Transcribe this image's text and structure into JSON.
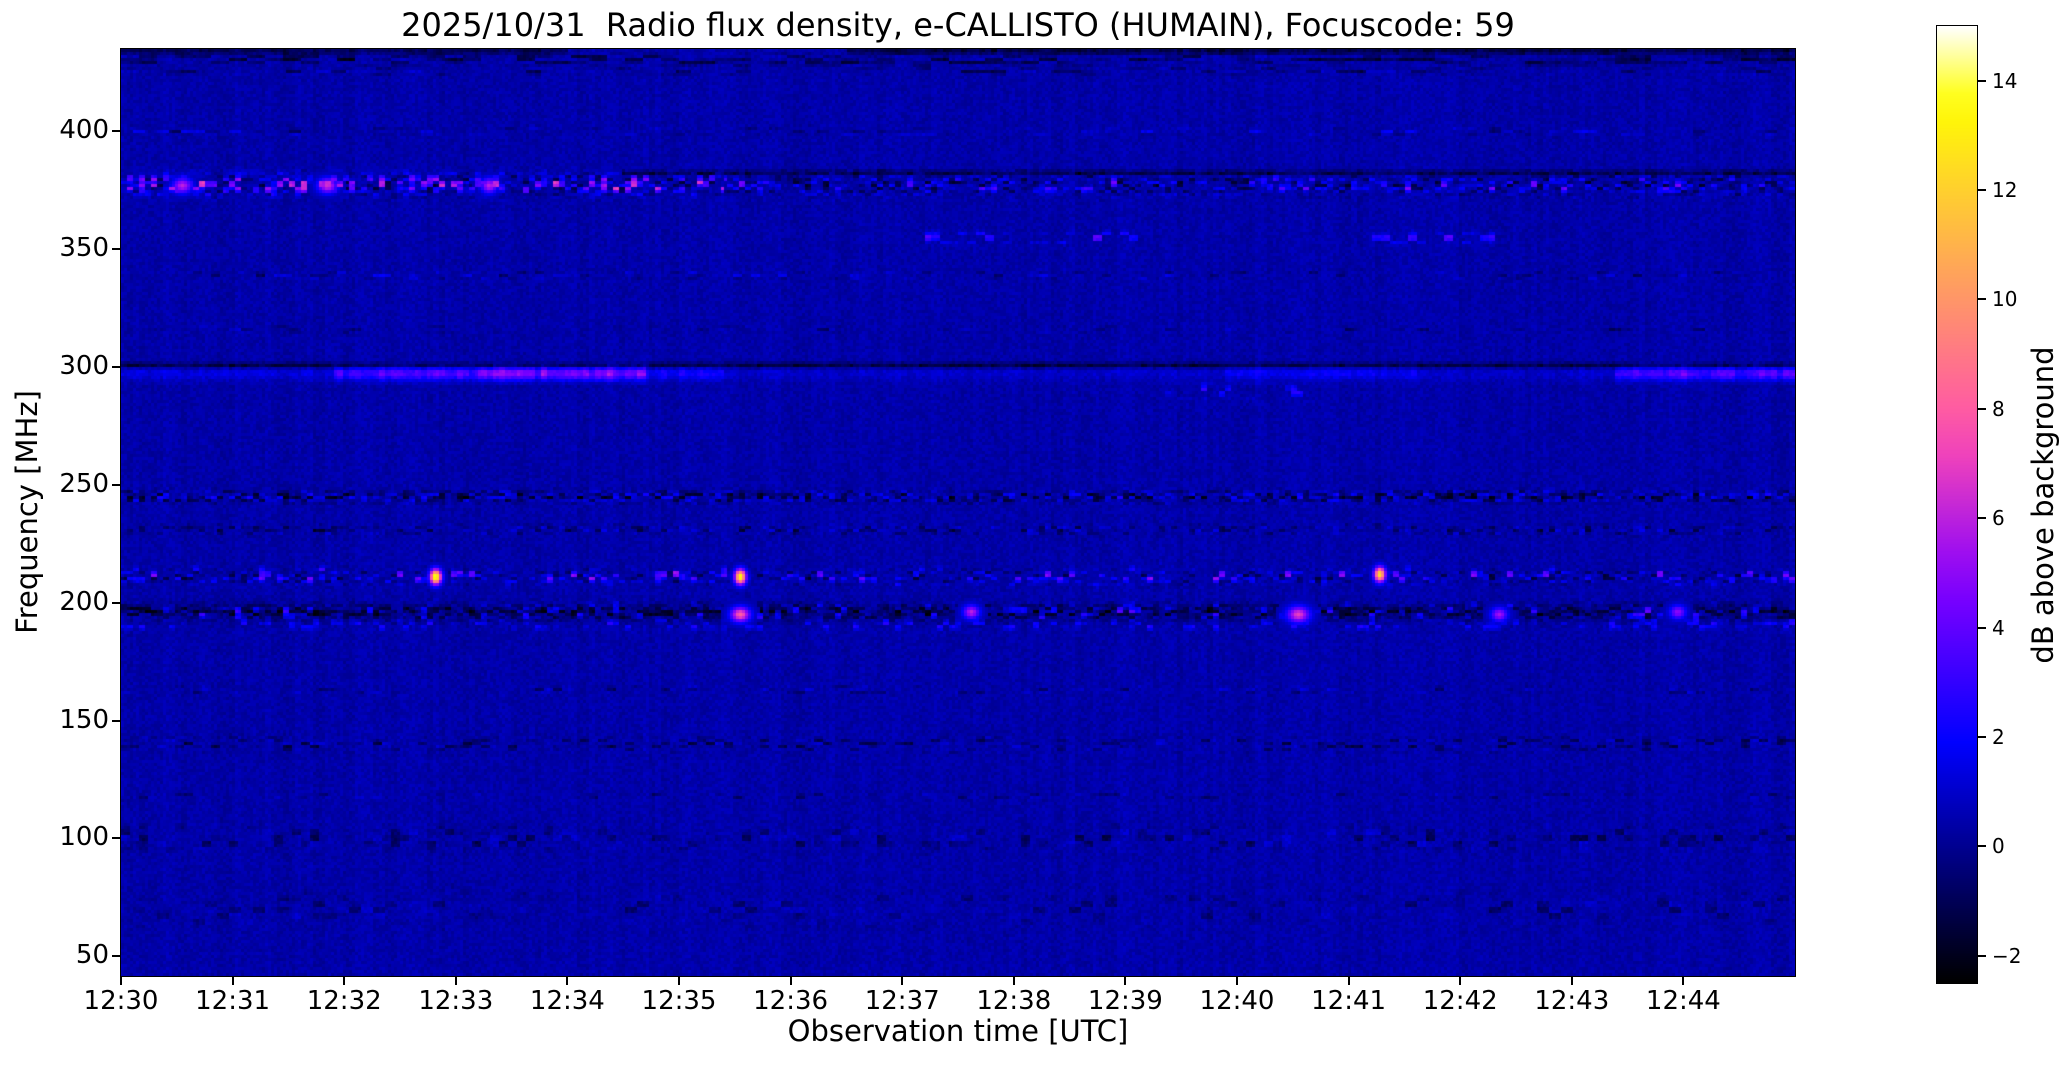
{
  "chart_data": {
    "type": "heatmap",
    "subtype": "radio-spectrogram",
    "title": "2025/10/31  Radio flux density, e-CALLISTO (HUMAIN), Focuscode: 59",
    "xlabel": "Observation time [UTC]",
    "ylabel": "Frequency [MHz]",
    "x_ticks": [
      "12:30",
      "12:31",
      "12:32",
      "12:33",
      "12:34",
      "12:35",
      "12:36",
      "12:37",
      "12:38",
      "12:39",
      "12:40",
      "12:41",
      "12:42",
      "12:43",
      "12:44"
    ],
    "x_span_minutes": 15,
    "x_start": "12:30",
    "x_end": "12:45",
    "f_min": 41.6,
    "f_max": 435,
    "y_ticks": [
      400,
      350,
      300,
      250,
      200,
      150,
      100,
      50
    ],
    "colorbar": {
      "label": "dB above background",
      "range": [
        -2.5,
        15
      ],
      "ticks": [
        {
          "v": 14,
          "label": "14"
        },
        {
          "v": 12,
          "label": "12"
        },
        {
          "v": 10,
          "label": "10"
        },
        {
          "v": 8,
          "label": "8"
        },
        {
          "v": 6,
          "label": "6"
        },
        {
          "v": 4,
          "label": "4"
        },
        {
          "v": 2,
          "label": "2"
        },
        {
          "v": 0,
          "label": "0"
        },
        {
          "v": -2,
          "label": "−2"
        }
      ],
      "colormap": "gnuplot2",
      "stops": [
        [
          0,
          "#000000"
        ],
        [
          0.05,
          "#000033"
        ],
        [
          0.1,
          "#000066"
        ],
        [
          0.15,
          "#000099"
        ],
        [
          0.2,
          "#0000cc"
        ],
        [
          0.25,
          "#0000ff"
        ],
        [
          0.3,
          "#2800ff"
        ],
        [
          0.35,
          "#5000ff"
        ],
        [
          0.4,
          "#7800ff"
        ],
        [
          0.45,
          "#9f0ff0"
        ],
        [
          0.5,
          "#c729d6"
        ],
        [
          0.55,
          "#ef42bd"
        ],
        [
          0.6,
          "#ff5ca3"
        ],
        [
          0.65,
          "#ff758a"
        ],
        [
          0.7,
          "#ff8f70"
        ],
        [
          0.75,
          "#ffa857"
        ],
        [
          0.8,
          "#ffc23d"
        ],
        [
          0.85,
          "#ffdb24"
        ],
        [
          0.9,
          "#fff50a"
        ],
        [
          0.93,
          "#ffff20"
        ],
        [
          0.96,
          "#ffff80"
        ],
        [
          1,
          "#ffffff"
        ]
      ]
    },
    "noise": {
      "bg_db": 0.4,
      "pixel_noise_db": 0.7,
      "column_noise_db": 0.3
    },
    "bands": [
      {
        "f": 430.5,
        "hw": 1.6,
        "t0": 0,
        "t1": 15,
        "fill": 0.6,
        "dbmin": -2.0,
        "dbmax": 0.8,
        "cw": 6,
        "ch": 1
      },
      {
        "f": 425.5,
        "hw": 1.0,
        "t0": 0,
        "t1": 15,
        "fill": 0.35,
        "dbmin": -1.2,
        "dbmax": 1.2,
        "cw": 5,
        "ch": 1
      },
      {
        "f": 400,
        "hw": 1.2,
        "t0": 0,
        "t1": 15,
        "fill": 0.3,
        "dbmin": -0.8,
        "dbmax": 1.6,
        "cw": 4,
        "ch": 1
      },
      {
        "f": 377.5,
        "hw": 3.2,
        "t0": 0,
        "t1": 15,
        "fill": 0.55,
        "dbmin": -1.8,
        "dbmax": 2.4,
        "cw": 2,
        "ch": 1
      },
      {
        "f": 377.5,
        "hw": 2.6,
        "t0": 0,
        "t1": 5.4,
        "fill": 0.3,
        "dbmin": 2.0,
        "dbmax": 6.8,
        "cw": 2,
        "ch": 2
      },
      {
        "f": 377.5,
        "hw": 2.2,
        "t0": 5.4,
        "t1": 15,
        "fill": 0.07,
        "dbmin": 2.0,
        "dbmax": 4.5,
        "cw": 2,
        "ch": 2
      },
      {
        "f": 355,
        "hw": 1.4,
        "t0": 7.2,
        "t1": 9.2,
        "fill": 0.32,
        "dbmin": 1.5,
        "dbmax": 4.2,
        "cw": 3,
        "ch": 2
      },
      {
        "f": 355,
        "hw": 1.4,
        "t0": 11.2,
        "t1": 12.3,
        "fill": 0.3,
        "dbmin": 1.5,
        "dbmax": 4.2,
        "cw": 3,
        "ch": 2
      },
      {
        "f": 339,
        "hw": 1.2,
        "t0": 0,
        "t1": 15,
        "fill": 0.25,
        "dbmin": -1.0,
        "dbmax": 1.6,
        "cw": 3,
        "ch": 1
      },
      {
        "f": 316,
        "hw": 0.9,
        "t0": 0,
        "t1": 15,
        "fill": 0.2,
        "dbmin": -0.9,
        "dbmax": 1.2,
        "cw": 4,
        "ch": 1
      },
      {
        "f": 290,
        "hw": 1.8,
        "t0": 9.3,
        "t1": 10.6,
        "fill": 0.18,
        "dbmin": 1.2,
        "dbmax": 2.8,
        "cw": 2,
        "ch": 2
      },
      {
        "f": 245,
        "hw": 1.7,
        "t0": 0,
        "t1": 15,
        "fill": 0.8,
        "dbmin": -2.4,
        "dbmax": 2.2,
        "cw": 2,
        "ch": 1
      },
      {
        "f": 231,
        "hw": 1.4,
        "t0": 0,
        "t1": 15,
        "fill": 0.45,
        "dbmin": -1.6,
        "dbmax": 1.5,
        "cw": 2,
        "ch": 1
      },
      {
        "f": 211,
        "hw": 2.0,
        "t0": 0,
        "t1": 15,
        "fill": 0.5,
        "dbmin": -1.6,
        "dbmax": 2.6,
        "cw": 2,
        "ch": 1
      },
      {
        "f": 211.5,
        "hw": 2.2,
        "t0": 0,
        "t1": 15,
        "fill": 0.07,
        "dbmin": 2.2,
        "dbmax": 5.0,
        "cw": 2,
        "ch": 2
      },
      {
        "f": 196,
        "hw": 2.4,
        "t0": 0,
        "t1": 15,
        "fill": 0.88,
        "dbmin": -2.4,
        "dbmax": 0.4,
        "cw": 2,
        "ch": 1
      },
      {
        "f": 196,
        "hw": 2.4,
        "t0": 0,
        "t1": 15,
        "fill": 0.16,
        "dbmin": 1.2,
        "dbmax": 4.0,
        "cw": 2,
        "ch": 2
      },
      {
        "f": 190.5,
        "hw": 1.4,
        "t0": 0,
        "t1": 15,
        "fill": 0.28,
        "dbmin": 0.5,
        "dbmax": 2.8,
        "cw": 2,
        "ch": 2
      },
      {
        "f": 163,
        "hw": 1.2,
        "t0": 0,
        "t1": 15,
        "fill": 0.25,
        "dbmin": -1.0,
        "dbmax": 1.5,
        "cw": 3,
        "ch": 1
      },
      {
        "f": 140,
        "hw": 2.0,
        "t0": 0,
        "t1": 15,
        "fill": 0.4,
        "dbmin": -1.6,
        "dbmax": 1.2,
        "cw": 3,
        "ch": 1
      },
      {
        "f": 118,
        "hw": 1.0,
        "t0": 0,
        "t1": 15,
        "fill": 0.2,
        "dbmin": -1.0,
        "dbmax": 1.0,
        "cw": 3,
        "ch": 1
      },
      {
        "f": 100,
        "hw": 3.5,
        "t0": 0,
        "t1": 15,
        "fill": 0.35,
        "dbmin": -1.3,
        "dbmax": 1.2,
        "cw": 3,
        "ch": 2
      },
      {
        "f": 70,
        "hw": 5.0,
        "t0": 0,
        "t1": 15,
        "fill": 0.3,
        "dbmin": -0.8,
        "dbmax": 0.9,
        "cw": 4,
        "ch": 2
      }
    ],
    "streaks": [
      {
        "f": 297.3,
        "hw": 2.0,
        "segments": [
          [
            0,
            1.9,
            1.0
          ],
          [
            1.9,
            3.2,
            3.0
          ],
          [
            3.2,
            4.7,
            4.0
          ],
          [
            4.7,
            5.4,
            1.8
          ],
          [
            5.4,
            9.9,
            0.6
          ],
          [
            9.9,
            11.6,
            1.3
          ],
          [
            11.6,
            13.4,
            0.6
          ],
          [
            13.4,
            15,
            3.2
          ]
        ]
      },
      {
        "f": 300.8,
        "hw": 0.8,
        "segments": [
          [
            0,
            15,
            -1.8
          ]
        ]
      },
      {
        "f": 382.5,
        "hw": 0.7,
        "segments": [
          [
            4.5,
            15,
            -1.6
          ]
        ]
      },
      {
        "f": 434,
        "hw": 0.8,
        "segments": [
          [
            0,
            4,
            -1.5
          ],
          [
            6.5,
            15,
            -1.8
          ]
        ]
      }
    ],
    "events": [
      {
        "t": 2.82,
        "f": 211,
        "db": 14.5,
        "sw": 0.035,
        "sh": 2.2
      },
      {
        "t": 5.55,
        "f": 211,
        "db": 13.5,
        "sw": 0.035,
        "sh": 2.2
      },
      {
        "t": 5.55,
        "f": 195,
        "db": 8.0,
        "sw": 0.06,
        "sh": 2.2
      },
      {
        "t": 11.28,
        "f": 212,
        "db": 12.5,
        "sw": 0.035,
        "sh": 2.2
      },
      {
        "t": 10.55,
        "f": 195,
        "db": 7.0,
        "sw": 0.07,
        "sh": 2.4
      },
      {
        "t": 7.62,
        "f": 196,
        "db": 6.0,
        "sw": 0.05,
        "sh": 2.0
      },
      {
        "t": 12.35,
        "f": 195,
        "db": 5.5,
        "sw": 0.05,
        "sh": 2.0
      },
      {
        "t": 13.95,
        "f": 196,
        "db": 5.0,
        "sw": 0.05,
        "sh": 2.0
      },
      {
        "t": 0.55,
        "f": 377,
        "db": 6.0,
        "sw": 0.06,
        "sh": 2.2
      },
      {
        "t": 1.85,
        "f": 377,
        "db": 6.5,
        "sw": 0.06,
        "sh": 2.2
      },
      {
        "t": 3.3,
        "f": 377,
        "db": 6.0,
        "sw": 0.05,
        "sh": 2.2
      }
    ]
  }
}
